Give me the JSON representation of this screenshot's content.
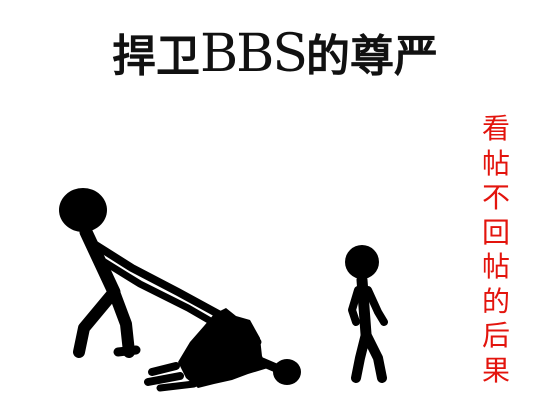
{
  "title": {
    "prefix": "捍卫",
    "latin": "BBS",
    "suffix": "的尊严"
  },
  "caption": {
    "chars": [
      "看",
      "帖",
      "不",
      "回",
      "帖",
      "的",
      "后",
      "果"
    ]
  },
  "colors": {
    "title": "#111111",
    "caption": "#e3140d",
    "figure": "#000000",
    "background": "#ffffff"
  }
}
